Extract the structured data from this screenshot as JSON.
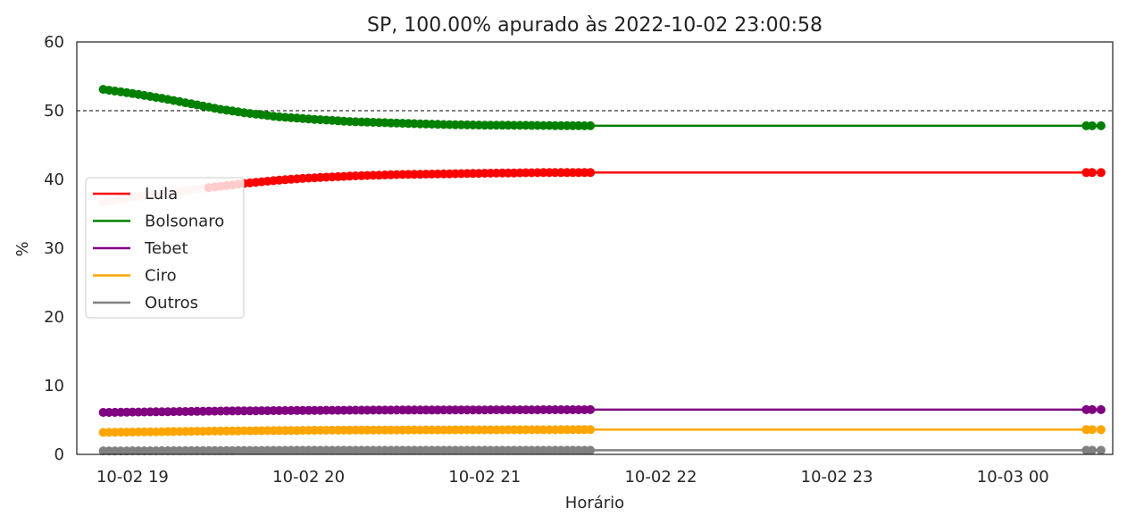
{
  "chart_data": {
    "type": "line",
    "title": "SP, 100.00% apurado às 2022-10-02 23:00:58",
    "xlabel": "Horário",
    "ylabel": "%",
    "ylim": [
      0,
      60
    ],
    "xlim": [
      "2022-10-02 18:41",
      "2022-10-03 00:34"
    ],
    "yticks": [
      "0",
      "10",
      "20",
      "30",
      "40",
      "50",
      "60"
    ],
    "xticks": [
      {
        "t": "2022-10-02 19:00",
        "label": "10-02 19"
      },
      {
        "t": "2022-10-02 20:00",
        "label": "10-02 20"
      },
      {
        "t": "2022-10-02 21:00",
        "label": "10-02 21"
      },
      {
        "t": "2022-10-02 22:00",
        "label": "10-02 22"
      },
      {
        "t": "2022-10-02 23:00",
        "label": "10-02 23"
      },
      {
        "t": "2022-10-03 00:00",
        "label": "10-03 00"
      }
    ],
    "reference_line": {
      "y": 50,
      "style": "dashed",
      "color": "#000000"
    },
    "legend_position": "center-left",
    "grid": false,
    "series": [
      {
        "name": "Lula",
        "color": "#ff0000",
        "values_start": 36.7,
        "values_end": 41.0,
        "points": [
          [
            "2022-10-02 18:50",
            36.7
          ],
          [
            "2022-10-02 19:00",
            37.4
          ],
          [
            "2022-10-02 19:10",
            37.9
          ],
          [
            "2022-10-02 19:20",
            38.5
          ],
          [
            "2022-10-02 19:30",
            39.0
          ],
          [
            "2022-10-02 19:40",
            39.5
          ],
          [
            "2022-10-02 19:50",
            39.9
          ],
          [
            "2022-10-02 20:00",
            40.2
          ],
          [
            "2022-10-02 20:15",
            40.5
          ],
          [
            "2022-10-02 20:30",
            40.7
          ],
          [
            "2022-10-02 20:45",
            40.8
          ],
          [
            "2022-10-02 21:00",
            40.9
          ],
          [
            "2022-10-02 21:20",
            41.0
          ],
          [
            "2022-10-02 21:36",
            41.0
          ],
          [
            "2022-10-03 00:25",
            41.0
          ],
          [
            "2022-10-03 00:30",
            41.0
          ]
        ]
      },
      {
        "name": "Bolsonaro",
        "color": "#008000",
        "points": [
          [
            "2022-10-02 18:50",
            53.1
          ],
          [
            "2022-10-02 19:00",
            52.5
          ],
          [
            "2022-10-02 19:10",
            51.8
          ],
          [
            "2022-10-02 19:20",
            51.0
          ],
          [
            "2022-10-02 19:30",
            50.2
          ],
          [
            "2022-10-02 19:40",
            49.6
          ],
          [
            "2022-10-02 19:50",
            49.1
          ],
          [
            "2022-10-02 20:00",
            48.8
          ],
          [
            "2022-10-02 20:15",
            48.4
          ],
          [
            "2022-10-02 20:30",
            48.2
          ],
          [
            "2022-10-02 20:45",
            48.0
          ],
          [
            "2022-10-02 21:00",
            47.9
          ],
          [
            "2022-10-02 21:20",
            47.85
          ],
          [
            "2022-10-02 21:36",
            47.8
          ],
          [
            "2022-10-03 00:25",
            47.8
          ],
          [
            "2022-10-03 00:30",
            47.8
          ]
        ]
      },
      {
        "name": "Tebet",
        "color": "#800080",
        "points": [
          [
            "2022-10-02 18:50",
            6.1
          ],
          [
            "2022-10-02 19:30",
            6.3
          ],
          [
            "2022-10-02 20:00",
            6.4
          ],
          [
            "2022-10-02 20:30",
            6.45
          ],
          [
            "2022-10-02 21:36",
            6.5
          ],
          [
            "2022-10-03 00:25",
            6.5
          ],
          [
            "2022-10-03 00:30",
            6.5
          ]
        ]
      },
      {
        "name": "Ciro",
        "color": "#ffa500",
        "points": [
          [
            "2022-10-02 18:50",
            3.2
          ],
          [
            "2022-10-02 19:30",
            3.4
          ],
          [
            "2022-10-02 20:00",
            3.5
          ],
          [
            "2022-10-02 20:30",
            3.55
          ],
          [
            "2022-10-02 21:36",
            3.6
          ],
          [
            "2022-10-03 00:25",
            3.6
          ],
          [
            "2022-10-03 00:30",
            3.6
          ]
        ]
      },
      {
        "name": "Outros",
        "color": "#808080",
        "points": [
          [
            "2022-10-02 18:50",
            0.5
          ],
          [
            "2022-10-02 20:00",
            0.6
          ],
          [
            "2022-10-02 21:36",
            0.6
          ],
          [
            "2022-10-03 00:25",
            0.6
          ],
          [
            "2022-10-03 00:30",
            0.6
          ]
        ]
      }
    ]
  }
}
